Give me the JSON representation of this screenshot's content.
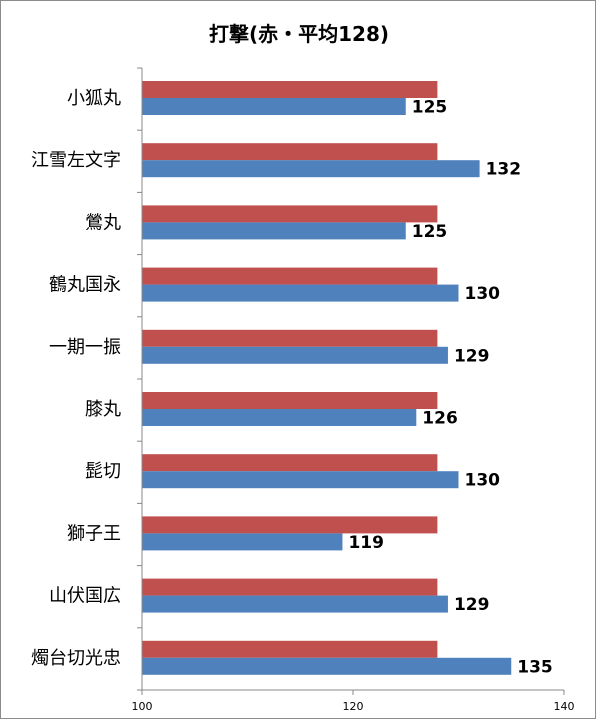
{
  "chart_data": {
    "type": "bar",
    "orientation": "horizontal",
    "title": "打撃(赤・平均128)",
    "categories": [
      "小狐丸",
      "江雪左文字",
      "鶯丸",
      "鶴丸国永",
      "一期一振",
      "膝丸",
      "髭切",
      "獅子王",
      "山伏国広",
      "燭台切光忠"
    ],
    "series": [
      {
        "color": "#c0504d",
        "values": [
          128,
          128,
          128,
          128,
          128,
          128,
          128,
          128,
          128,
          128
        ]
      },
      {
        "color": "#4f81bd",
        "values": [
          125,
          132,
          125,
          130,
          129,
          126,
          130,
          119,
          129,
          135
        ],
        "data_labels": [
          "125",
          "132",
          "125",
          "130",
          "129",
          "126",
          "130",
          "119",
          "129",
          "135"
        ]
      }
    ],
    "xlim": [
      100,
      140
    ],
    "x_ticks": [
      "100",
      "120",
      "140"
    ],
    "grid": false,
    "legend": "none"
  }
}
